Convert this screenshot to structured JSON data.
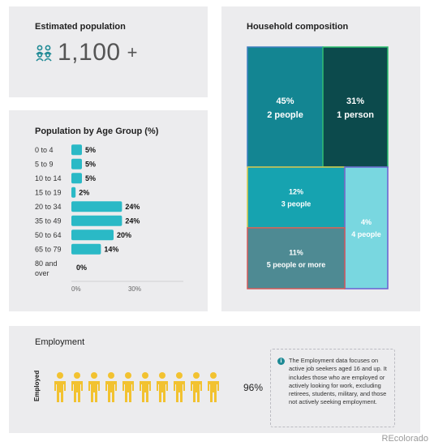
{
  "population": {
    "title": "Estimated population",
    "value": "1,100",
    "suffix": "+",
    "icon": "people-group-icon",
    "accent": "#1f8a95"
  },
  "age_group": {
    "title": "Population by Age Group (%)"
  },
  "household": {
    "title": "Household composition"
  },
  "employment": {
    "title": "Employment",
    "row_label": "Employed",
    "value_label": "96%",
    "employed_share": 0.96,
    "icon_count": 10,
    "info_icon": "info-icon",
    "info_text": "The Employment data focuses on active job seekers aged 16 and up. It includes those who are employed or actively looking for work, excluding retirees, students, military, and those not actively seeking employment.",
    "colors": {
      "employed": "#f2c230",
      "other": "#d9d9d9"
    }
  },
  "footer": {
    "brand": "REcolorado"
  },
  "chart_data": [
    {
      "type": "bar",
      "orientation": "horizontal",
      "title": "Population by Age Group (%)",
      "categories": [
        "0 to 4",
        "5 to 9",
        "10 to 14",
        "15 to 19",
        "20 to 34",
        "35 to 49",
        "50 to 64",
        "65 to 79",
        "80 and over"
      ],
      "values": [
        5,
        5,
        5,
        2,
        24,
        24,
        20,
        14,
        0
      ],
      "value_labels": [
        "5%",
        "5%",
        "5%",
        "2%",
        "24%",
        "24%",
        "20%",
        "14%",
        "0%"
      ],
      "x_ticks": [
        "0%",
        "30%"
      ],
      "xlim": [
        0,
        55
      ],
      "color": "#2ab9c6"
    },
    {
      "type": "treemap",
      "title": "Household composition",
      "items": [
        {
          "share": "45%",
          "label": "2 people",
          "value": 45,
          "color": "#138592",
          "border": "#3d7fbf"
        },
        {
          "share": "31%",
          "label": "1 person",
          "value": 31,
          "color": "#0c4a4c",
          "border": "#2dbe6f"
        },
        {
          "share": "12%",
          "label": "3 people",
          "value": 12,
          "color": "#16a3b0",
          "border": "#d8c94a"
        },
        {
          "share": "4%",
          "label": "4 people",
          "value": 4,
          "color": "#79d7e0",
          "border": "#6a5fd0"
        },
        {
          "share": "11%",
          "label": "5 people or more",
          "value": 11,
          "color": "#4e8a93",
          "border": "#d35a5a"
        }
      ]
    }
  ]
}
